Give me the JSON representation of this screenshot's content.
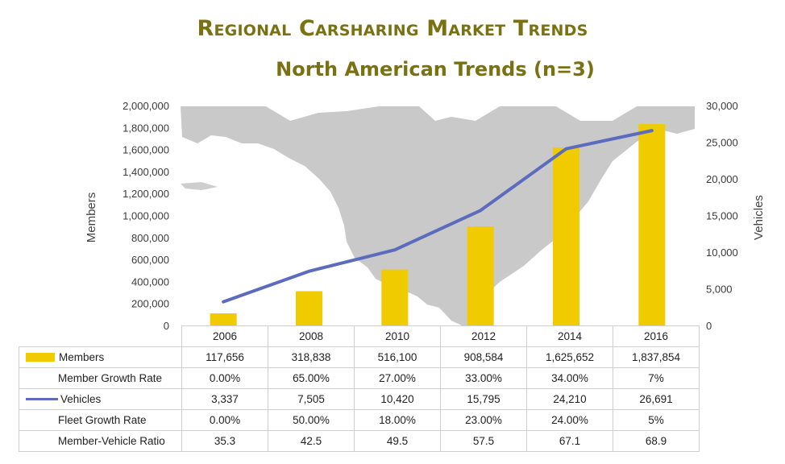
{
  "title": "Regional Carsharing Market Trends",
  "subtitle": "North American Trends (n=3)",
  "colors": {
    "title": "#7a7113",
    "bars": "#f0cb00",
    "line": "#5b6bbd",
    "map": "#c9c9c9"
  },
  "chart_data": {
    "type": "bar+line",
    "categories": [
      "2006",
      "2008",
      "2010",
      "2012",
      "2014",
      "2016"
    ],
    "series": [
      {
        "name": "Members",
        "type": "bar",
        "axis": "left",
        "values": [
          117656,
          318838,
          516100,
          908584,
          1625652,
          1837854
        ]
      },
      {
        "name": "Vehicles",
        "type": "line",
        "axis": "right",
        "values": [
          3337,
          7505,
          10420,
          15795,
          24210,
          26691
        ]
      }
    ],
    "ylabel_left": "Members",
    "ylabel_right": "Vehicles",
    "ylim_left": [
      0,
      2000000
    ],
    "ylim_right": [
      0,
      30000
    ],
    "left_ticks": [
      "0",
      "200,000",
      "400,000",
      "600,000",
      "800,000",
      "1,000,000",
      "1,200,000",
      "1,400,000",
      "1,600,000",
      "1,800,000",
      "2,000,000"
    ],
    "right_ticks": [
      "0",
      "5,000",
      "10,000",
      "15,000",
      "20,000",
      "25,000",
      "30,000"
    ],
    "background": "map of North America"
  },
  "table": {
    "rows": [
      {
        "label": "Members",
        "marker": "bar",
        "values": [
          "117,656",
          "318,838",
          "516,100",
          "908,584",
          "1,625,652",
          "1,837,854"
        ]
      },
      {
        "label": "Member Growth Rate",
        "marker": "none",
        "values": [
          "0.00%",
          "65.00%",
          "27.00%",
          "33.00%",
          "34.00%",
          "7%"
        ]
      },
      {
        "label": "Vehicles",
        "marker": "line",
        "values": [
          "3,337",
          "7,505",
          "10,420",
          "15,795",
          "24,210",
          "26,691"
        ]
      },
      {
        "label": "Fleet Growth Rate",
        "marker": "none",
        "values": [
          "0.00%",
          "50.00%",
          "18.00%",
          "23.00%",
          "24.00%",
          "5%"
        ]
      },
      {
        "label": "Member-Vehicle Ratio",
        "marker": "none",
        "values": [
          "35.3",
          "42.5",
          "49.5",
          "57.5",
          "67.1",
          "68.9"
        ]
      }
    ]
  }
}
